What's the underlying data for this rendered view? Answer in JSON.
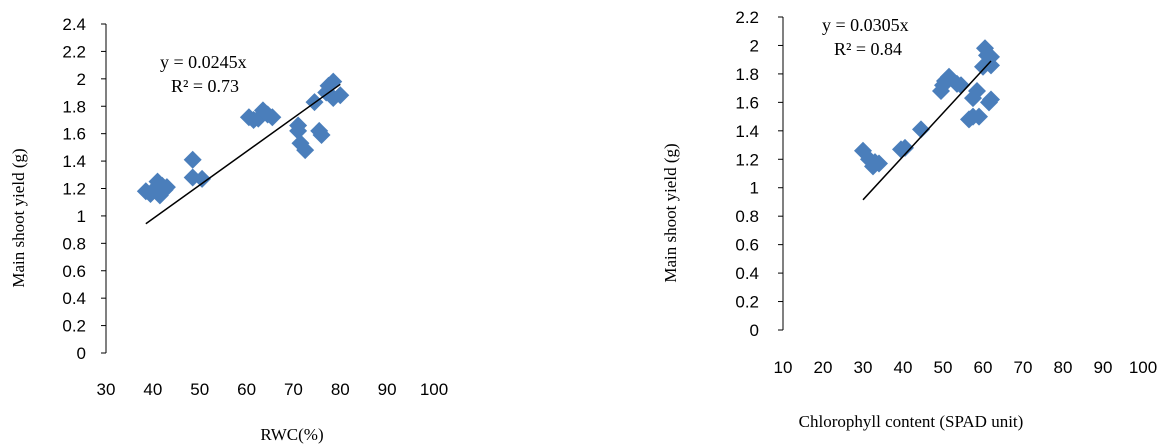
{
  "chart_data": [
    {
      "type": "scatter",
      "title": "",
      "xlabel": "RWC(%)",
      "ylabel": "Main shoot  yield (g)",
      "xlim": [
        30,
        100
      ],
      "ylim": [
        0,
        2.4
      ],
      "x_ticks": [
        "30",
        "40",
        "50",
        "60",
        "70",
        "80",
        "90",
        "100"
      ],
      "y_ticks": [
        "0",
        "0.2",
        "0.4",
        "0.6",
        "0.8",
        "1",
        "1.2",
        "1.4",
        "1.6",
        "1.8",
        "2",
        "2.2",
        "2.4"
      ],
      "marker_color": "#4a7ebb",
      "grid": false,
      "points": [
        {
          "x": 38.5,
          "y": 1.18
        },
        {
          "x": 39.5,
          "y": 1.16
        },
        {
          "x": 40.5,
          "y": 1.2
        },
        {
          "x": 41,
          "y": 1.25
        },
        {
          "x": 41.5,
          "y": 1.15
        },
        {
          "x": 42,
          "y": 1.22
        },
        {
          "x": 42.5,
          "y": 1.19
        },
        {
          "x": 43,
          "y": 1.21
        },
        {
          "x": 48.5,
          "y": 1.41
        },
        {
          "x": 48.5,
          "y": 1.28
        },
        {
          "x": 50.5,
          "y": 1.27
        },
        {
          "x": 60.5,
          "y": 1.72
        },
        {
          "x": 61.5,
          "y": 1.7
        },
        {
          "x": 62.5,
          "y": 1.71
        },
        {
          "x": 63.5,
          "y": 1.77
        },
        {
          "x": 64.5,
          "y": 1.74
        },
        {
          "x": 65.5,
          "y": 1.72
        },
        {
          "x": 71,
          "y": 1.66
        },
        {
          "x": 71,
          "y": 1.62
        },
        {
          "x": 71.5,
          "y": 1.53
        },
        {
          "x": 72.5,
          "y": 1.48
        },
        {
          "x": 74.5,
          "y": 1.83
        },
        {
          "x": 75.5,
          "y": 1.62
        },
        {
          "x": 76,
          "y": 1.59
        },
        {
          "x": 77,
          "y": 1.9
        },
        {
          "x": 77.5,
          "y": 1.95
        },
        {
          "x": 78.5,
          "y": 1.98
        },
        {
          "x": 78.5,
          "y": 1.86
        },
        {
          "x": 80,
          "y": 1.88
        }
      ],
      "trendline": {
        "x": [
          38.5,
          80
        ],
        "y": [
          0.943,
          1.96
        ],
        "equation": "y = 0.0245x",
        "r2": "R² = 0.73"
      }
    },
    {
      "type": "scatter",
      "title": "",
      "xlabel": "Chlorophyll content (SPAD unit)",
      "ylabel": "Main shoot  yield (g)",
      "xlim": [
        10,
        100
      ],
      "ylim": [
        0,
        2.2
      ],
      "x_ticks": [
        "10",
        "20",
        "30",
        "40",
        "50",
        "60",
        "70",
        "80",
        "90",
        "100"
      ],
      "y_ticks": [
        "0",
        "0.2",
        "0.4",
        "0.6",
        "0.8",
        "1",
        "1.2",
        "1.4",
        "1.6",
        "1.8",
        "2",
        "2.2"
      ],
      "marker_color": "#4a7ebb",
      "grid": false,
      "points": [
        {
          "x": 30,
          "y": 1.26
        },
        {
          "x": 31.5,
          "y": 1.2
        },
        {
          "x": 32.5,
          "y": 1.15
        },
        {
          "x": 33,
          "y": 1.18
        },
        {
          "x": 34,
          "y": 1.17
        },
        {
          "x": 39.5,
          "y": 1.27
        },
        {
          "x": 40.5,
          "y": 1.28
        },
        {
          "x": 44.5,
          "y": 1.41
        },
        {
          "x": 49.5,
          "y": 1.68
        },
        {
          "x": 50,
          "y": 1.72
        },
        {
          "x": 50.5,
          "y": 1.75
        },
        {
          "x": 51.5,
          "y": 1.78
        },
        {
          "x": 53.5,
          "y": 1.73
        },
        {
          "x": 54.5,
          "y": 1.72
        },
        {
          "x": 56.5,
          "y": 1.48
        },
        {
          "x": 57.5,
          "y": 1.5
        },
        {
          "x": 57.5,
          "y": 1.63
        },
        {
          "x": 58.5,
          "y": 1.68
        },
        {
          "x": 59,
          "y": 1.5
        },
        {
          "x": 60,
          "y": 1.85
        },
        {
          "x": 60.5,
          "y": 1.98
        },
        {
          "x": 61,
          "y": 1.93
        },
        {
          "x": 61.5,
          "y": 1.6
        },
        {
          "x": 62,
          "y": 1.92
        },
        {
          "x": 62,
          "y": 1.86
        },
        {
          "x": 62,
          "y": 1.62
        }
      ],
      "trendline": {
        "x": [
          30,
          62
        ],
        "y": [
          0.915,
          1.891
        ],
        "equation": "y = 0.0305x",
        "r2": "R² = 0.84"
      }
    }
  ]
}
